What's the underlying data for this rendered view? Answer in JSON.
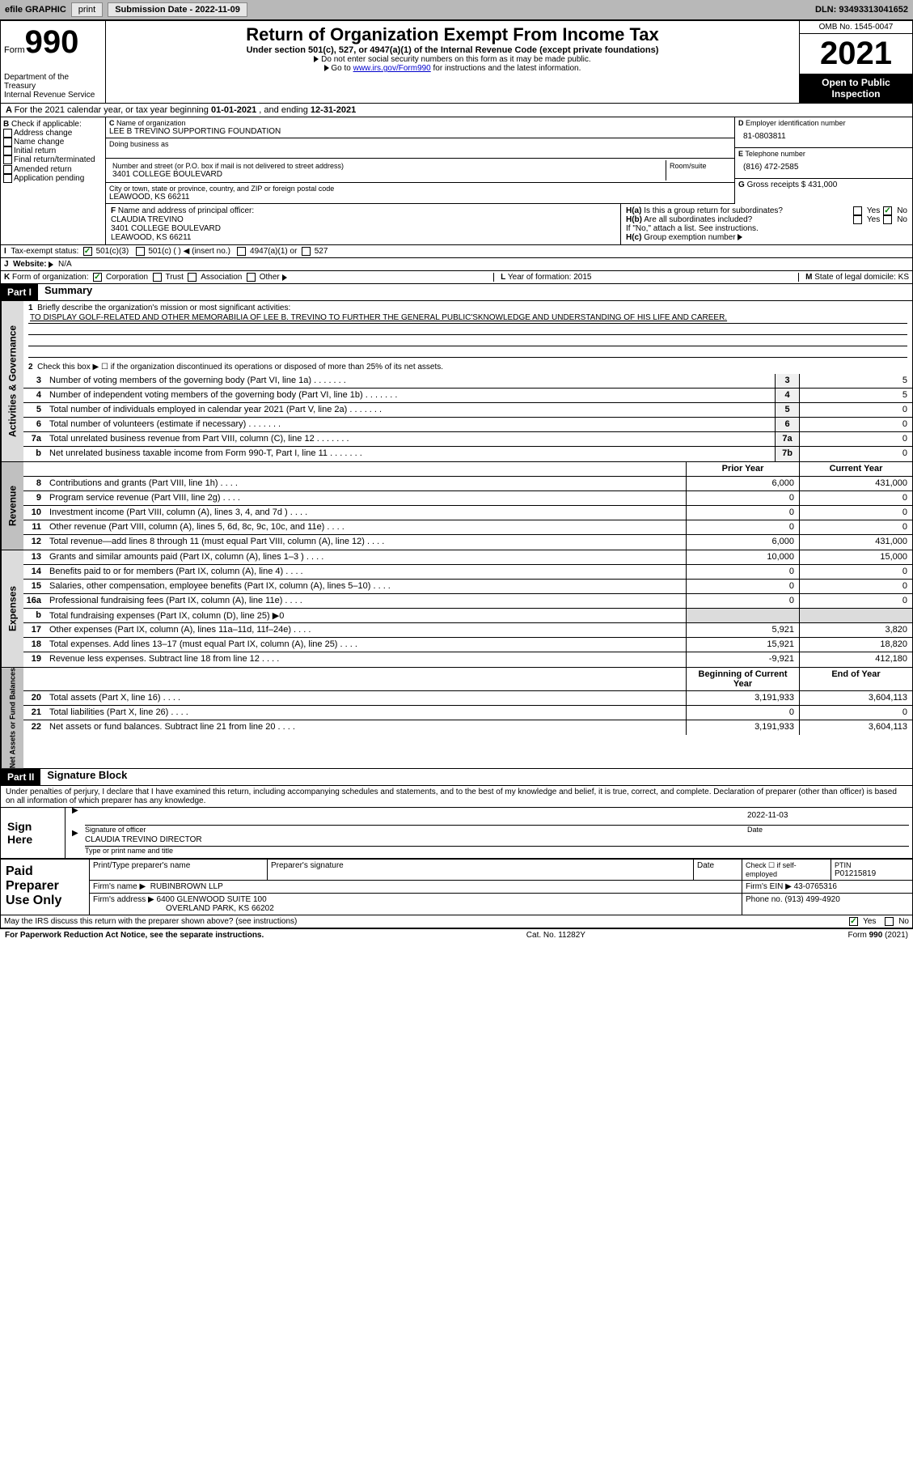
{
  "topbar": {
    "efile": "efile GRAPHIC",
    "print": "print",
    "subdate_label": "Submission Date - ",
    "subdate": "2022-11-09",
    "dln_label": "DLN: ",
    "dln": "93493313041652"
  },
  "header": {
    "form_label": "Form",
    "form_num": "990",
    "title": "Return of Organization Exempt From Income Tax",
    "subtitle": "Under section 501(c), 527, or 4947(a)(1) of the Internal Revenue Code (except private foundations)",
    "instr1": "Do not enter social security numbers on this form as it may be made public.",
    "instr2_pre": "Go to ",
    "instr2_link": "www.irs.gov/Form990",
    "instr2_post": " for instructions and the latest information.",
    "dept": "Department of the Treasury",
    "irs": "Internal Revenue Service",
    "omb": "OMB No. 1545-0047",
    "year": "2021",
    "open": "Open to Public Inspection"
  },
  "rowA": {
    "text_pre": "For the 2021 calendar year, or tax year beginning ",
    "begin": "01-01-2021",
    "mid": " , and ending ",
    "end": "12-31-2021"
  },
  "boxB": {
    "label": "Check if applicable:",
    "opts": [
      "Address change",
      "Name change",
      "Initial return",
      "Final return/terminated",
      "Amended return",
      "Application pending"
    ]
  },
  "boxC": {
    "name_label": "Name of organization",
    "name": "LEE B TREVINO SUPPORTING FOUNDATION",
    "dba_label": "Doing business as",
    "addr_label": "Number and street (or P.O. box if mail is not delivered to street address)",
    "room_label": "Room/suite",
    "addr": "3401 COLLEGE BOULEVARD",
    "city_label": "City or town, state or province, country, and ZIP or foreign postal code",
    "city": "LEAWOOD, KS  66211"
  },
  "boxD": {
    "label": "Employer identification number",
    "val": "81-0803811"
  },
  "boxE": {
    "label": "Telephone number",
    "val": "(816) 472-2585"
  },
  "boxG": {
    "label": "Gross receipts $",
    "val": "431,000"
  },
  "boxF": {
    "label": "Name and address of principal officer:",
    "name": "CLAUDIA TREVINO",
    "addr1": "3401 COLLEGE BOULEVARD",
    "addr2": "LEAWOOD, KS  66211"
  },
  "boxH": {
    "a": "Is this a group return for subordinates?",
    "b": "Are all subordinates included?",
    "note": "If \"No,\" attach a list. See instructions.",
    "c": "Group exemption number"
  },
  "rowI": {
    "label": "Tax-exempt status:",
    "opt1": "501(c)(3)",
    "opt2": "501(c) (  ) ◀ (insert no.)",
    "opt3": "4947(a)(1) or",
    "opt4": "527"
  },
  "rowJ": {
    "label": "Website:",
    "val": "N/A"
  },
  "rowK": {
    "label": "Form of organization:",
    "opts": [
      "Corporation",
      "Trust",
      "Association",
      "Other"
    ],
    "L": "Year of formation: 2015",
    "M": "State of legal domicile: KS"
  },
  "part1": {
    "header": "Part I",
    "title": "Summary",
    "line1_label": "Briefly describe the organization's mission or most significant activities:",
    "mission": "TO DISPLAY GOLF-RELATED AND OTHER MEMORABILIA OF LEE B. TREVINO TO FURTHER THE GENERAL PUBLIC'SKNOWLEDGE AND UNDERSTANDING OF HIS LIFE AND CAREER.",
    "line2": "Check this box ▶ ☐ if the organization discontinued its operations or disposed of more than 25% of its net assets.",
    "rows_gov": [
      {
        "n": "3",
        "desc": "Number of voting members of the governing body (Part VI, line 1a)",
        "box": "3",
        "val": "5"
      },
      {
        "n": "4",
        "desc": "Number of independent voting members of the governing body (Part VI, line 1b)",
        "box": "4",
        "val": "5"
      },
      {
        "n": "5",
        "desc": "Total number of individuals employed in calendar year 2021 (Part V, line 2a)",
        "box": "5",
        "val": "0"
      },
      {
        "n": "6",
        "desc": "Total number of volunteers (estimate if necessary)",
        "box": "6",
        "val": "0"
      },
      {
        "n": "7a",
        "desc": "Total unrelated business revenue from Part VIII, column (C), line 12",
        "box": "7a",
        "val": "0"
      },
      {
        "n": "b",
        "desc": "Net unrelated business taxable income from Form 990-T, Part I, line 11",
        "box": "7b",
        "val": "0"
      }
    ],
    "col_prior": "Prior Year",
    "col_curr": "Current Year",
    "rows_rev": [
      {
        "n": "8",
        "desc": "Contributions and grants (Part VIII, line 1h)",
        "p": "6,000",
        "c": "431,000"
      },
      {
        "n": "9",
        "desc": "Program service revenue (Part VIII, line 2g)",
        "p": "0",
        "c": "0"
      },
      {
        "n": "10",
        "desc": "Investment income (Part VIII, column (A), lines 3, 4, and 7d )",
        "p": "0",
        "c": "0"
      },
      {
        "n": "11",
        "desc": "Other revenue (Part VIII, column (A), lines 5, 6d, 8c, 9c, 10c, and 11e)",
        "p": "0",
        "c": "0"
      },
      {
        "n": "12",
        "desc": "Total revenue—add lines 8 through 11 (must equal Part VIII, column (A), line 12)",
        "p": "6,000",
        "c": "431,000"
      }
    ],
    "rows_exp": [
      {
        "n": "13",
        "desc": "Grants and similar amounts paid (Part IX, column (A), lines 1–3 )",
        "p": "10,000",
        "c": "15,000"
      },
      {
        "n": "14",
        "desc": "Benefits paid to or for members (Part IX, column (A), line 4)",
        "p": "0",
        "c": "0"
      },
      {
        "n": "15",
        "desc": "Salaries, other compensation, employee benefits (Part IX, column (A), lines 5–10)",
        "p": "0",
        "c": "0"
      },
      {
        "n": "16a",
        "desc": "Professional fundraising fees (Part IX, column (A), line 11e)",
        "p": "0",
        "c": "0"
      },
      {
        "n": "b",
        "desc": "Total fundraising expenses (Part IX, column (D), line 25) ▶0",
        "shaded": true
      },
      {
        "n": "17",
        "desc": "Other expenses (Part IX, column (A), lines 11a–11d, 11f–24e)",
        "p": "5,921",
        "c": "3,820"
      },
      {
        "n": "18",
        "desc": "Total expenses. Add lines 13–17 (must equal Part IX, column (A), line 25)",
        "p": "15,921",
        "c": "18,820"
      },
      {
        "n": "19",
        "desc": "Revenue less expenses. Subtract line 18 from line 12",
        "p": "-9,921",
        "c": "412,180"
      }
    ],
    "col_begin": "Beginning of Current Year",
    "col_end": "End of Year",
    "rows_net": [
      {
        "n": "20",
        "desc": "Total assets (Part X, line 16)",
        "p": "3,191,933",
        "c": "3,604,113"
      },
      {
        "n": "21",
        "desc": "Total liabilities (Part X, line 26)",
        "p": "0",
        "c": "0"
      },
      {
        "n": "22",
        "desc": "Net assets or fund balances. Subtract line 21 from line 20",
        "p": "3,191,933",
        "c": "3,604,113"
      }
    ],
    "vtabs": {
      "gov": "Activities & Governance",
      "rev": "Revenue",
      "exp": "Expenses",
      "net": "Net Assets or Fund Balances"
    }
  },
  "part2": {
    "header": "Part II",
    "title": "Signature Block",
    "decl": "Under penalties of perjury, I declare that I have examined this return, including accompanying schedules and statements, and to the best of my knowledge and belief, it is true, correct, and complete. Declaration of preparer (other than officer) is based on all information of which preparer has any knowledge.",
    "sign_here": "Sign Here",
    "sig_officer": "Signature of officer",
    "sig_date": "2022-11-03",
    "date_label": "Date",
    "officer_name": "CLAUDIA TREVINO  DIRECTOR",
    "type_label": "Type or print name and title",
    "paid": "Paid Preparer Use Only",
    "prep_name_label": "Print/Type preparer's name",
    "prep_sig_label": "Preparer's signature",
    "prep_date_label": "Date",
    "prep_check": "Check ☐ if self-employed",
    "ptin_label": "PTIN",
    "ptin": "P01215819",
    "firm_name_label": "Firm's name ▶",
    "firm_name": "RUBINBROWN LLP",
    "firm_ein_label": "Firm's EIN ▶",
    "firm_ein": "43-0765316",
    "firm_addr_label": "Firm's address ▶",
    "firm_addr1": "6400 GLENWOOD SUITE 100",
    "firm_addr2": "OVERLAND PARK, KS  66202",
    "phone_label": "Phone no.",
    "phone": "(913) 499-4920",
    "discuss": "May the IRS discuss this return with the preparer shown above? (see instructions)",
    "yes": "Yes",
    "no": "No"
  },
  "footer": {
    "pra": "For Paperwork Reduction Act Notice, see the separate instructions.",
    "cat": "Cat. No. 11282Y",
    "form": "Form 990 (2021)"
  }
}
